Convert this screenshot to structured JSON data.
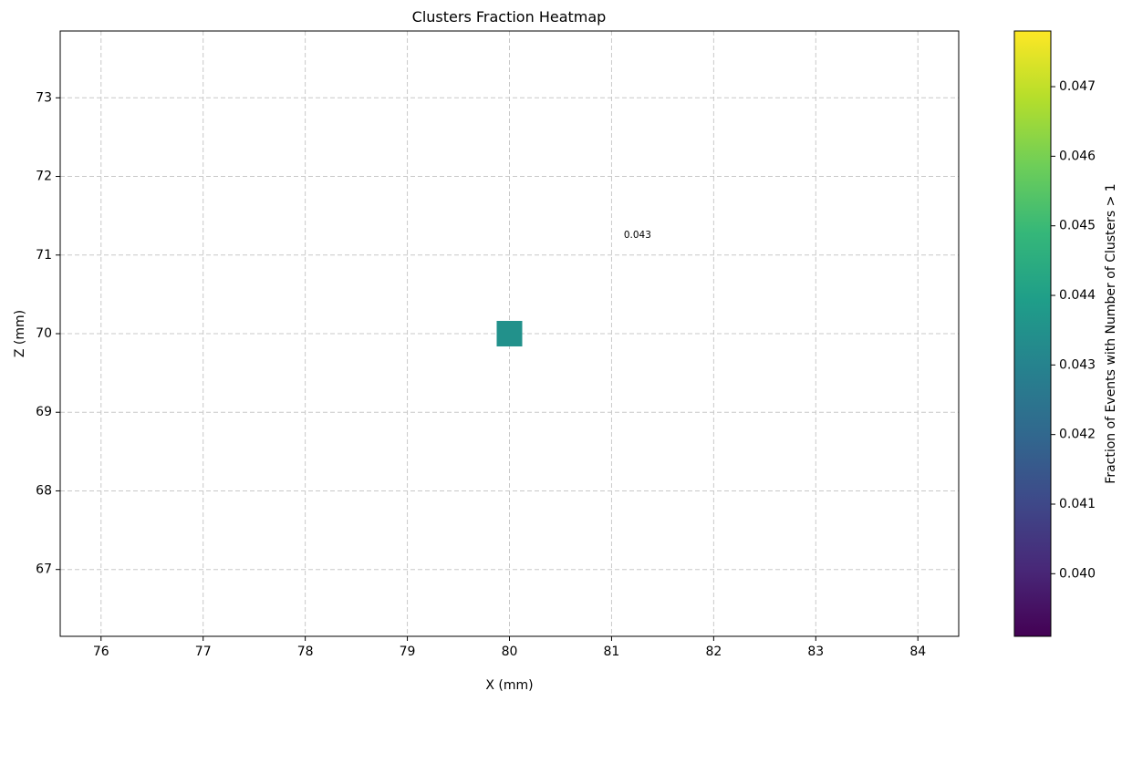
{
  "chart_data": {
    "type": "heatmap",
    "title": "Clusters Fraction Heatmap",
    "xlabel": "X (mm)",
    "ylabel": "Z (mm)",
    "xlim": [
      75.6,
      84.4
    ],
    "ylim": [
      66.15,
      73.85
    ],
    "xticks": [
      76,
      77,
      78,
      79,
      80,
      81,
      82,
      83,
      84
    ],
    "yticks": [
      67,
      68,
      69,
      70,
      71,
      72,
      73
    ],
    "grid": true,
    "points": [
      {
        "x": 80,
        "z": 70,
        "value": 0.0435
      }
    ],
    "annotations": [
      {
        "text": "0.043",
        "x": 81.12,
        "z": 71.25
      }
    ],
    "colorbar": {
      "label": "Fraction of Events with Number of Clusters > 1",
      "min": 0.0391,
      "max": 0.0478,
      "ticks": [
        "0.040",
        "0.041",
        "0.042",
        "0.043",
        "0.044",
        "0.045",
        "0.046",
        "0.047"
      ],
      "colormap": "viridis",
      "colors": [
        "#440154",
        "#482878",
        "#3e4989",
        "#31688e",
        "#26828e",
        "#1f9e89",
        "#35b779",
        "#6ece58",
        "#b5de2b",
        "#fde725"
      ]
    }
  }
}
